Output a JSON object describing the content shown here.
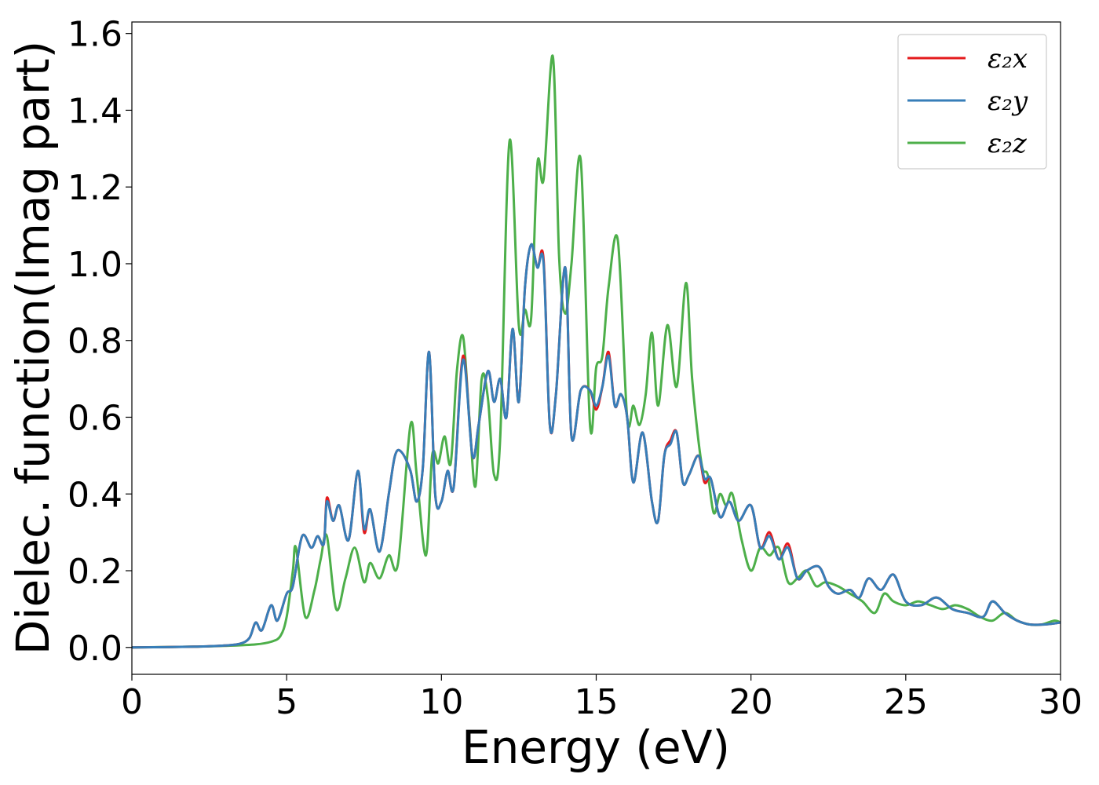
{
  "chart_data": {
    "type": "line",
    "title": "",
    "xlabel": "Energy (eV)",
    "ylabel": "Dielec. function(Imag part)",
    "xlim": [
      0,
      30
    ],
    "ylim": [
      -0.07,
      1.63
    ],
    "x_ticks": [
      0,
      5,
      10,
      15,
      20,
      25,
      30
    ],
    "x_tick_labels": [
      "0",
      "5",
      "10",
      "15",
      "20",
      "25",
      "30"
    ],
    "y_ticks": [
      0.0,
      0.2,
      0.4,
      0.6,
      0.8,
      1.0,
      1.2,
      1.4,
      1.6
    ],
    "y_tick_labels": [
      "0.0",
      "0.2",
      "0.4",
      "0.6",
      "0.8",
      "1.0",
      "1.2",
      "1.4",
      "1.6"
    ],
    "grid": false,
    "legend": {
      "placement": "top-right"
    },
    "series": [
      {
        "name": "ε₂x",
        "color": "#e41a1c",
        "x": [
          0,
          2,
          3,
          3.5,
          3.8,
          4.0,
          4.2,
          4.5,
          4.7,
          5.0,
          5.2,
          5.5,
          5.8,
          6.0,
          6.2,
          6.3,
          6.5,
          6.7,
          7.0,
          7.3,
          7.5,
          7.7,
          8.0,
          8.3,
          8.5,
          8.7,
          9.0,
          9.2,
          9.4,
          9.6,
          9.8,
          10.0,
          10.2,
          10.4,
          10.7,
          11.0,
          11.2,
          11.5,
          11.7,
          11.9,
          12.1,
          12.3,
          12.5,
          12.7,
          12.9,
          13.1,
          13.3,
          13.5,
          13.7,
          14.0,
          14.2,
          14.5,
          14.8,
          15.0,
          15.2,
          15.4,
          15.6,
          15.8,
          16.0,
          16.2,
          16.5,
          16.8,
          17.0,
          17.2,
          17.4,
          17.6,
          17.8,
          18.0,
          18.3,
          18.5,
          18.7,
          19.0,
          19.3,
          19.6,
          20.0,
          20.3,
          20.6,
          20.9,
          21.2,
          21.5,
          21.8,
          22.2,
          22.5,
          22.8,
          23.2,
          23.5,
          23.8,
          24.2,
          24.6,
          25.0,
          25.5,
          26.0,
          26.5,
          27.0,
          27.5,
          27.8,
          28.2,
          28.6,
          29.0,
          29.5,
          30.0
        ],
        "values": [
          0.0,
          0.002,
          0.005,
          0.01,
          0.025,
          0.065,
          0.045,
          0.11,
          0.07,
          0.14,
          0.16,
          0.29,
          0.26,
          0.29,
          0.27,
          0.39,
          0.33,
          0.37,
          0.28,
          0.46,
          0.3,
          0.36,
          0.25,
          0.4,
          0.5,
          0.51,
          0.46,
          0.38,
          0.47,
          0.77,
          0.4,
          0.38,
          0.46,
          0.42,
          0.76,
          0.5,
          0.58,
          0.72,
          0.64,
          0.7,
          0.6,
          0.83,
          0.64,
          0.94,
          1.05,
          0.99,
          1.01,
          0.58,
          0.66,
          0.99,
          0.55,
          0.67,
          0.67,
          0.62,
          0.68,
          0.77,
          0.63,
          0.66,
          0.6,
          0.43,
          0.56,
          0.38,
          0.33,
          0.5,
          0.54,
          0.56,
          0.43,
          0.45,
          0.5,
          0.43,
          0.44,
          0.34,
          0.38,
          0.33,
          0.37,
          0.26,
          0.3,
          0.23,
          0.27,
          0.18,
          0.2,
          0.21,
          0.16,
          0.14,
          0.15,
          0.13,
          0.18,
          0.15,
          0.19,
          0.12,
          0.11,
          0.13,
          0.1,
          0.09,
          0.08,
          0.12,
          0.09,
          0.07,
          0.06,
          0.06,
          0.065
        ]
      },
      {
        "name": "ε₂y",
        "color": "#377eb8",
        "x": [
          0,
          2,
          3,
          3.5,
          3.8,
          4.0,
          4.2,
          4.5,
          4.7,
          5.0,
          5.2,
          5.5,
          5.8,
          6.0,
          6.2,
          6.3,
          6.5,
          6.7,
          7.0,
          7.3,
          7.5,
          7.7,
          8.0,
          8.3,
          8.5,
          8.7,
          9.0,
          9.2,
          9.4,
          9.6,
          9.8,
          10.0,
          10.2,
          10.4,
          10.7,
          11.0,
          11.2,
          11.5,
          11.7,
          11.9,
          12.1,
          12.3,
          12.5,
          12.7,
          12.9,
          13.1,
          13.3,
          13.5,
          13.7,
          14.0,
          14.2,
          14.5,
          14.8,
          15.0,
          15.2,
          15.4,
          15.6,
          15.8,
          16.0,
          16.2,
          16.5,
          16.8,
          17.0,
          17.2,
          17.4,
          17.6,
          17.8,
          18.0,
          18.3,
          18.5,
          18.7,
          19.0,
          19.3,
          19.6,
          20.0,
          20.3,
          20.6,
          20.9,
          21.2,
          21.5,
          21.8,
          22.2,
          22.5,
          22.8,
          23.2,
          23.5,
          23.8,
          24.2,
          24.6,
          25.0,
          25.5,
          26.0,
          26.5,
          27.0,
          27.5,
          27.8,
          28.2,
          28.6,
          29.0,
          29.5,
          30.0
        ],
        "values": [
          0.0,
          0.002,
          0.005,
          0.01,
          0.025,
          0.065,
          0.045,
          0.11,
          0.07,
          0.14,
          0.16,
          0.29,
          0.26,
          0.29,
          0.27,
          0.38,
          0.33,
          0.37,
          0.28,
          0.46,
          0.31,
          0.36,
          0.25,
          0.4,
          0.5,
          0.51,
          0.46,
          0.38,
          0.47,
          0.77,
          0.4,
          0.38,
          0.46,
          0.42,
          0.75,
          0.5,
          0.58,
          0.72,
          0.64,
          0.7,
          0.6,
          0.83,
          0.64,
          0.94,
          1.05,
          0.99,
          1.0,
          0.58,
          0.66,
          0.99,
          0.55,
          0.67,
          0.67,
          0.63,
          0.68,
          0.76,
          0.63,
          0.66,
          0.6,
          0.43,
          0.56,
          0.38,
          0.33,
          0.5,
          0.53,
          0.56,
          0.43,
          0.45,
          0.5,
          0.44,
          0.44,
          0.34,
          0.38,
          0.33,
          0.37,
          0.26,
          0.29,
          0.23,
          0.26,
          0.18,
          0.2,
          0.21,
          0.16,
          0.14,
          0.15,
          0.13,
          0.18,
          0.15,
          0.19,
          0.12,
          0.11,
          0.13,
          0.1,
          0.09,
          0.08,
          0.12,
          0.09,
          0.07,
          0.06,
          0.06,
          0.065
        ]
      },
      {
        "name": "ε₂z",
        "color": "#4daf4a",
        "x": [
          0,
          2,
          3,
          4,
          4.5,
          4.8,
          5.0,
          5.2,
          5.3,
          5.6,
          5.9,
          6.1,
          6.3,
          6.6,
          6.9,
          7.2,
          7.5,
          7.7,
          8.0,
          8.3,
          8.6,
          9.0,
          9.2,
          9.5,
          9.7,
          9.9,
          10.1,
          10.3,
          10.5,
          10.7,
          10.9,
          11.1,
          11.3,
          11.5,
          11.7,
          11.9,
          12.2,
          12.5,
          12.7,
          12.9,
          13.1,
          13.3,
          13.6,
          13.8,
          14.0,
          14.2,
          14.5,
          14.8,
          15.0,
          15.2,
          15.4,
          15.7,
          16.0,
          16.2,
          16.4,
          16.6,
          16.8,
          17.0,
          17.3,
          17.6,
          17.9,
          18.1,
          18.4,
          18.6,
          18.8,
          19.0,
          19.2,
          19.4,
          19.7,
          20.0,
          20.3,
          20.6,
          20.9,
          21.2,
          21.5,
          21.8,
          22.1,
          22.4,
          22.8,
          23.2,
          23.6,
          24.0,
          24.3,
          24.6,
          25.0,
          25.4,
          25.8,
          26.2,
          26.6,
          27.0,
          27.4,
          27.8,
          28.2,
          28.6,
          29.0,
          29.4,
          29.8,
          30.0
        ],
        "values": [
          0.0,
          0.002,
          0.004,
          0.008,
          0.015,
          0.03,
          0.08,
          0.2,
          0.26,
          0.08,
          0.15,
          0.23,
          0.29,
          0.1,
          0.18,
          0.26,
          0.17,
          0.22,
          0.18,
          0.24,
          0.22,
          0.58,
          0.45,
          0.24,
          0.5,
          0.48,
          0.55,
          0.48,
          0.72,
          0.81,
          0.6,
          0.42,
          0.7,
          0.65,
          0.45,
          0.55,
          1.32,
          0.84,
          0.88,
          0.86,
          1.26,
          1.22,
          1.54,
          1.02,
          0.87,
          1.0,
          1.27,
          0.58,
          0.73,
          0.76,
          0.94,
          1.06,
          0.6,
          0.63,
          0.58,
          0.66,
          0.82,
          0.63,
          0.84,
          0.68,
          0.95,
          0.7,
          0.48,
          0.45,
          0.35,
          0.4,
          0.37,
          0.4,
          0.28,
          0.2,
          0.26,
          0.24,
          0.26,
          0.17,
          0.18,
          0.2,
          0.16,
          0.17,
          0.16,
          0.14,
          0.12,
          0.09,
          0.14,
          0.12,
          0.11,
          0.12,
          0.11,
          0.1,
          0.11,
          0.1,
          0.08,
          0.07,
          0.09,
          0.07,
          0.06,
          0.06,
          0.07,
          0.065
        ]
      }
    ]
  }
}
